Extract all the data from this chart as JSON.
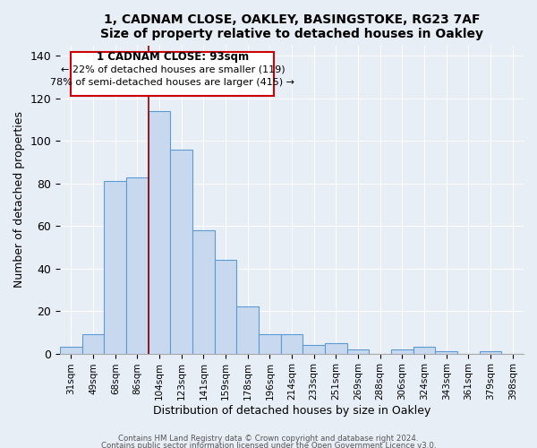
{
  "title": "1, CADNAM CLOSE, OAKLEY, BASINGSTOKE, RG23 7AF",
  "subtitle": "Size of property relative to detached houses in Oakley",
  "xlabel": "Distribution of detached houses by size in Oakley",
  "ylabel": "Number of detached properties",
  "bar_labels": [
    "31sqm",
    "49sqm",
    "68sqm",
    "86sqm",
    "104sqm",
    "123sqm",
    "141sqm",
    "159sqm",
    "178sqm",
    "196sqm",
    "214sqm",
    "233sqm",
    "251sqm",
    "269sqm",
    "288sqm",
    "306sqm",
    "324sqm",
    "343sqm",
    "361sqm",
    "379sqm",
    "398sqm"
  ],
  "bar_values": [
    3,
    9,
    81,
    83,
    114,
    96,
    58,
    44,
    22,
    9,
    9,
    4,
    5,
    2,
    0,
    2,
    3,
    1,
    0,
    1,
    0
  ],
  "bar_color": "#c8d9ef",
  "bar_edge_color": "#5b9bd5",
  "ylim": [
    0,
    145
  ],
  "yticks": [
    0,
    20,
    40,
    60,
    80,
    100,
    120,
    140
  ],
  "vline_color": "#8b0000",
  "annotation_line1": "1 CADNAM CLOSE: 93sqm",
  "annotation_line2": "← 22% of detached houses are smaller (119)",
  "annotation_line3": "78% of semi-detached houses are larger (415) →",
  "footer1": "Contains HM Land Registry data © Crown copyright and database right 2024.",
  "footer2": "Contains public sector information licensed under the Open Government Licence v3.0.",
  "bg_color": "#e8eef6"
}
